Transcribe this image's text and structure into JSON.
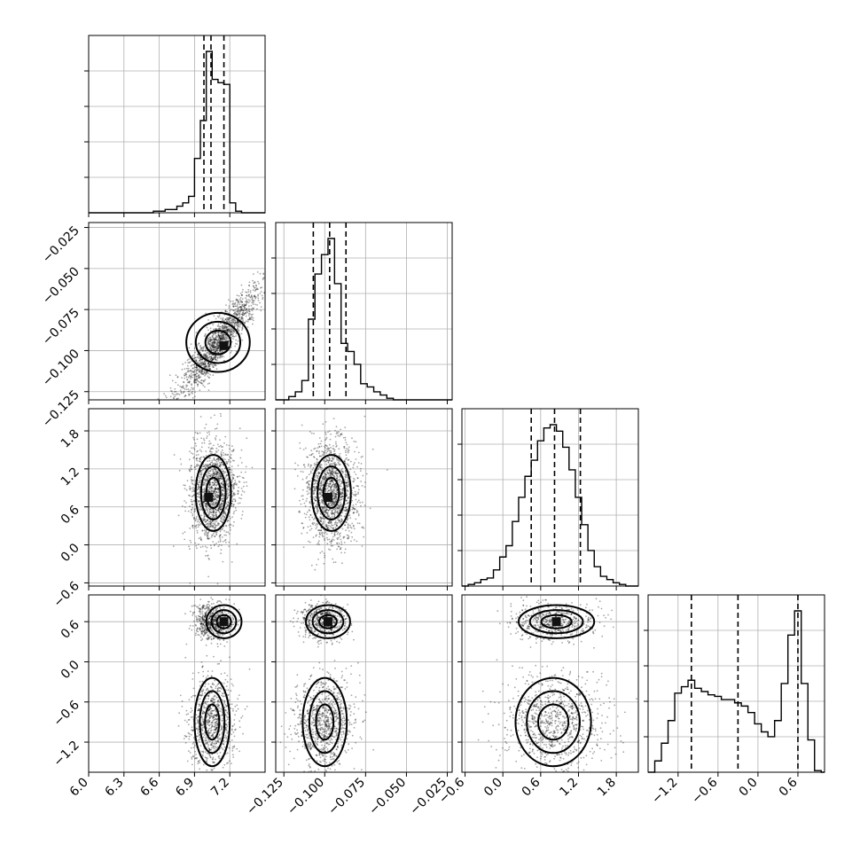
{
  "chart_data": {
    "type": "corner",
    "colors": {
      "line": "#000000",
      "grid": "#b0b0b0",
      "points": "#000000"
    },
    "grid": true,
    "parameters": [
      {
        "range": [
          6.0,
          7.5
        ],
        "ticks": [
          "6.0",
          "6.3",
          "6.6",
          "6.9",
          "7.2"
        ],
        "tick_values": [
          6.0,
          6.3,
          6.6,
          6.9,
          7.2
        ],
        "quantiles": [
          6.98,
          7.04,
          7.15
        ]
      },
      {
        "range": [
          -0.13,
          -0.022
        ],
        "ticks": [
          "−0.125",
          "−0.100",
          "−0.075",
          "−0.050",
          "−0.025"
        ],
        "tick_values": [
          -0.125,
          -0.1,
          -0.075,
          -0.05,
          -0.025
        ],
        "quantiles": [
          -0.107,
          -0.097,
          -0.087
        ]
      },
      {
        "range": [
          -0.65,
          2.15
        ],
        "ticks": [
          "−0.6",
          "0.0",
          "0.6",
          "1.2",
          "1.8"
        ],
        "tick_values": [
          -0.6,
          0.0,
          0.6,
          1.2,
          1.8
        ],
        "quantiles": [
          0.45,
          0.82,
          1.23
        ]
      },
      {
        "range": [
          -1.65,
          1.0
        ],
        "ticks": [
          "−1.2",
          "−0.6",
          "0.0",
          "0.6"
        ],
        "tick_values": [
          -1.2,
          -0.6,
          0.0,
          0.6
        ],
        "quantiles": [
          -1.0,
          -0.3,
          0.6
        ]
      }
    ],
    "histograms": [
      {
        "param": 0,
        "bin_edges": [
          6.0,
          6.05,
          6.1,
          6.15,
          6.2,
          6.25,
          6.3,
          6.35,
          6.4,
          6.45,
          6.5,
          6.55,
          6.6,
          6.65,
          6.7,
          6.75,
          6.8,
          6.85,
          6.9,
          6.95,
          7.0,
          7.05,
          7.1,
          7.15,
          7.2,
          7.25,
          7.3,
          7.35,
          7.4,
          7.45,
          7.5
        ],
        "counts": [
          0,
          0,
          0,
          0,
          0,
          0,
          0,
          0,
          0,
          0,
          0,
          0.01,
          0.01,
          0.02,
          0.02,
          0.04,
          0.06,
          0.1,
          0.33,
          0.56,
          0.98,
          0.81,
          0.79,
          0.78,
          0.06,
          0.01,
          0,
          0,
          0,
          0
        ]
      },
      {
        "param": 1,
        "bin_edges": [
          -0.13,
          -0.126,
          -0.122,
          -0.118,
          -0.114,
          -0.11,
          -0.106,
          -0.102,
          -0.098,
          -0.094,
          -0.09,
          -0.086,
          -0.082,
          -0.078,
          -0.074,
          -0.07,
          -0.066,
          -0.062,
          -0.058,
          -0.054,
          -0.05,
          -0.046,
          -0.042,
          -0.038,
          -0.034,
          -0.03,
          -0.026,
          -0.022
        ],
        "counts": [
          0,
          0,
          0.02,
          0.05,
          0.12,
          0.5,
          0.78,
          0.9,
          1.0,
          0.72,
          0.35,
          0.3,
          0.22,
          0.1,
          0.08,
          0.05,
          0.03,
          0.01,
          0,
          0,
          0,
          0,
          0,
          0,
          0,
          0,
          0
        ]
      },
      {
        "param": 2,
        "bin_edges": [
          -0.65,
          -0.55,
          -0.45,
          -0.35,
          -0.25,
          -0.15,
          -0.05,
          0.05,
          0.15,
          0.25,
          0.35,
          0.45,
          0.55,
          0.65,
          0.75,
          0.85,
          0.95,
          1.05,
          1.15,
          1.25,
          1.35,
          1.45,
          1.55,
          1.65,
          1.75,
          1.85,
          1.95,
          2.05,
          2.15
        ],
        "counts": [
          0,
          0.01,
          0.02,
          0.04,
          0.05,
          0.1,
          0.18,
          0.25,
          0.4,
          0.55,
          0.68,
          0.78,
          0.9,
          0.98,
          1.0,
          0.96,
          0.86,
          0.72,
          0.55,
          0.38,
          0.22,
          0.12,
          0.06,
          0.04,
          0.02,
          0.01,
          0,
          0
        ]
      },
      {
        "param": 3,
        "bin_edges": [
          -1.65,
          -1.55,
          -1.45,
          -1.35,
          -1.25,
          -1.15,
          -1.05,
          -0.95,
          -0.85,
          -0.75,
          -0.65,
          -0.55,
          -0.45,
          -0.35,
          -0.25,
          -0.15,
          -0.05,
          0.05,
          0.15,
          0.25,
          0.35,
          0.45,
          0.55,
          0.65,
          0.75,
          0.85,
          0.95,
          1.0
        ],
        "counts": [
          0,
          0.07,
          0.18,
          0.32,
          0.49,
          0.53,
          0.57,
          0.52,
          0.5,
          0.48,
          0.47,
          0.45,
          0.45,
          0.43,
          0.41,
          0.37,
          0.3,
          0.25,
          0.22,
          0.32,
          0.55,
          0.85,
          1.0,
          0.55,
          0.2,
          0.01,
          0
        ]
      }
    ],
    "joint": [
      {
        "x": 0,
        "y": 1,
        "center": [
          7.1,
          -0.095
        ],
        "spread": [
          0.18,
          0.012
        ],
        "density_peak": [
          7.15,
          -0.097
        ]
      },
      {
        "x": 0,
        "y": 2,
        "center": [
          7.06,
          0.82
        ],
        "spread": [
          0.1,
          0.4
        ],
        "density_peak": [
          7.02,
          0.75
        ]
      },
      {
        "x": 1,
        "y": 2,
        "center": [
          -0.096,
          0.82
        ],
        "spread": [
          0.008,
          0.4
        ],
        "density_peak": [
          -0.098,
          0.75
        ]
      },
      {
        "x": 0,
        "y": 3,
        "center": [
          7.05,
          -0.5
        ],
        "spread": [
          0.1,
          0.55
        ],
        "density_peak": [
          7.15,
          0.6
        ]
      },
      {
        "x": 1,
        "y": 3,
        "center": [
          -0.1,
          -0.4
        ],
        "spread": [
          0.009,
          0.55
        ],
        "density_peak": [
          -0.098,
          0.6
        ]
      },
      {
        "x": 2,
        "y": 3,
        "center": [
          0.8,
          -0.4
        ],
        "spread": [
          0.4,
          0.55
        ],
        "density_peak": [
          0.85,
          0.6
        ]
      }
    ]
  }
}
